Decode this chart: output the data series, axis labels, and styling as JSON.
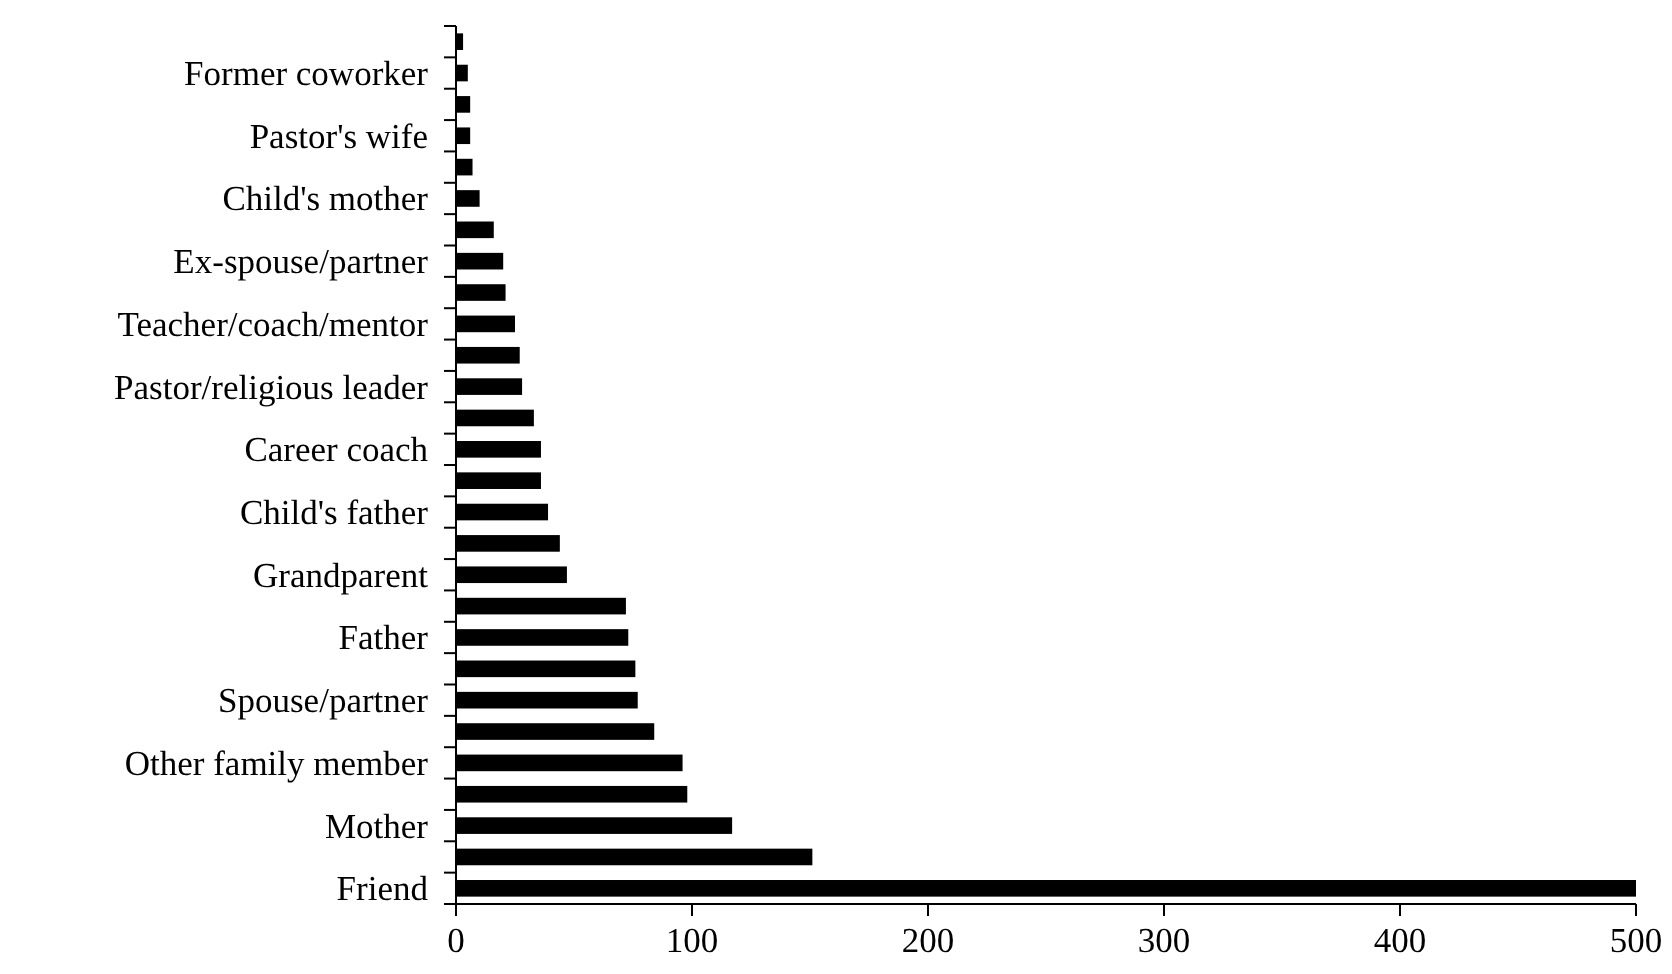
{
  "chart_data": {
    "type": "bar",
    "orientation": "horizontal",
    "categories": [
      null,
      "Former coworker",
      null,
      "Pastor's wife",
      null,
      "Child's mother",
      null,
      "Ex-spouse/partner",
      null,
      "Teacher/coach/mentor",
      null,
      "Pastor/religious leader",
      null,
      "Career coach",
      null,
      "Child's father",
      null,
      "Grandparent",
      null,
      "Father",
      null,
      "Spouse/partner",
      null,
      "Other family member",
      null,
      "Mother",
      null,
      "Friend"
    ],
    "values": [
      3,
      5,
      6,
      6,
      7,
      10,
      16,
      20,
      21,
      25,
      27,
      28,
      33,
      36,
      36,
      39,
      44,
      47,
      72,
      73,
      76,
      77,
      84,
      96,
      98,
      117,
      151,
      500
    ],
    "color": "#000000",
    "xlim": [
      0,
      500
    ],
    "xticks": [
      0,
      100,
      200,
      300,
      400,
      500
    ],
    "grid": false
  }
}
